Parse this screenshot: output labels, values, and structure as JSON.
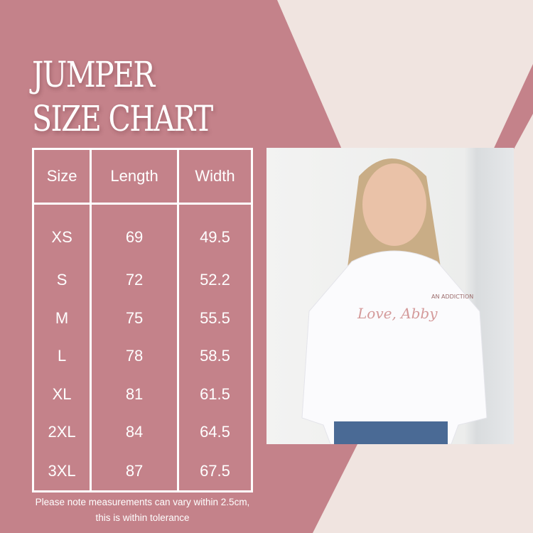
{
  "title_line1": "JUMPER",
  "title_line2": "SIZE CHART",
  "table": {
    "headers": [
      "Size",
      "Length",
      "Width"
    ],
    "rows": [
      [
        "XS",
        "69",
        "49.5"
      ],
      [
        "S",
        "72",
        "52.2"
      ],
      [
        "M",
        "75",
        "55.5"
      ],
      [
        "L",
        "78",
        "58.5"
      ],
      [
        "XL",
        "81",
        "61.5"
      ],
      [
        "2XL",
        "84",
        "64.5"
      ],
      [
        "3XL",
        "87",
        "67.5"
      ]
    ]
  },
  "note": "Please note measurements can vary within 2.5cm, this is within tolerance",
  "photo": {
    "shirt_logo": "Love, Abby",
    "shirt_logo_sub": "AN ADDICTION"
  },
  "colors": {
    "pink": "#c4828a",
    "light": "#f0e4e0",
    "white": "#ffffff"
  }
}
